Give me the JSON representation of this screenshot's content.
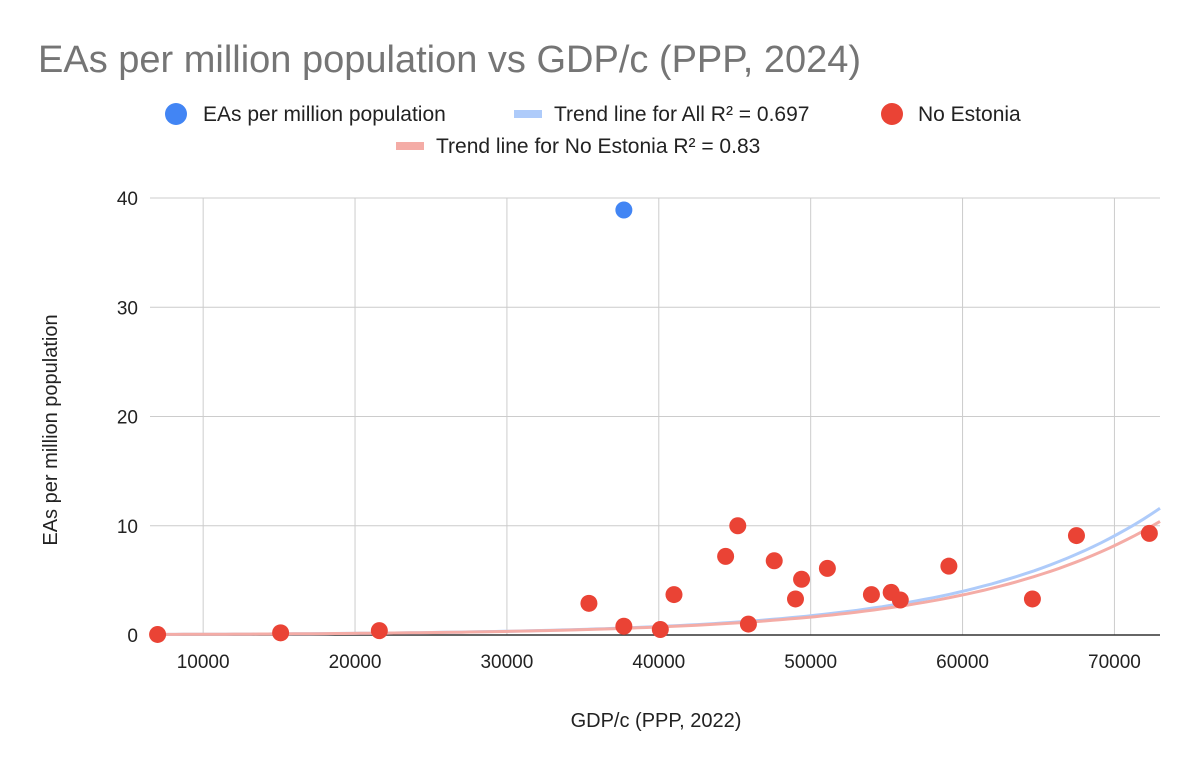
{
  "chart_data": {
    "type": "scatter",
    "title": "EAs per million population vs GDP/c (PPP, 2024)",
    "xlabel": "GDP/c (PPP, 2022)",
    "ylabel": "EAs per million population",
    "xlim": [
      6500,
      73000
    ],
    "ylim": [
      0,
      40
    ],
    "xticks": [
      10000,
      20000,
      30000,
      40000,
      50000,
      60000,
      70000
    ],
    "yticks": [
      0,
      10,
      20,
      30,
      40
    ],
    "grid": true,
    "legend_position": "top",
    "series": [
      {
        "name": "EAs per million population",
        "kind": "points",
        "color": "#4285f4",
        "points": [
          [
            37700,
            38.9
          ]
        ]
      },
      {
        "name": "Trend line for All R² = 0.697",
        "kind": "trendline",
        "color": "#aecbfa",
        "x_range": [
          6500,
          73000
        ],
        "y_range": [
          0.05,
          11.6
        ]
      },
      {
        "name": "No Estonia",
        "kind": "points",
        "color": "#ea4335",
        "points": [
          [
            7000,
            0.05
          ],
          [
            15100,
            0.2
          ],
          [
            21600,
            0.4
          ],
          [
            35400,
            2.9
          ],
          [
            37700,
            0.8
          ],
          [
            40100,
            0.5
          ],
          [
            41000,
            3.7
          ],
          [
            44400,
            7.2
          ],
          [
            45200,
            10.0
          ],
          [
            45900,
            1.0
          ],
          [
            47600,
            6.8
          ],
          [
            49000,
            3.3
          ],
          [
            49400,
            5.1
          ],
          [
            51100,
            6.1
          ],
          [
            54000,
            3.7
          ],
          [
            55300,
            3.9
          ],
          [
            55900,
            3.2
          ],
          [
            59100,
            6.3
          ],
          [
            64600,
            3.3
          ],
          [
            67500,
            9.1
          ],
          [
            72300,
            9.3
          ]
        ]
      },
      {
        "name": "Trend line for No Estonia R² = 0.83",
        "kind": "trendline",
        "color": "#f4aca6",
        "x_range": [
          6500,
          73000
        ],
        "y_range": [
          0.05,
          10.4
        ]
      }
    ]
  }
}
